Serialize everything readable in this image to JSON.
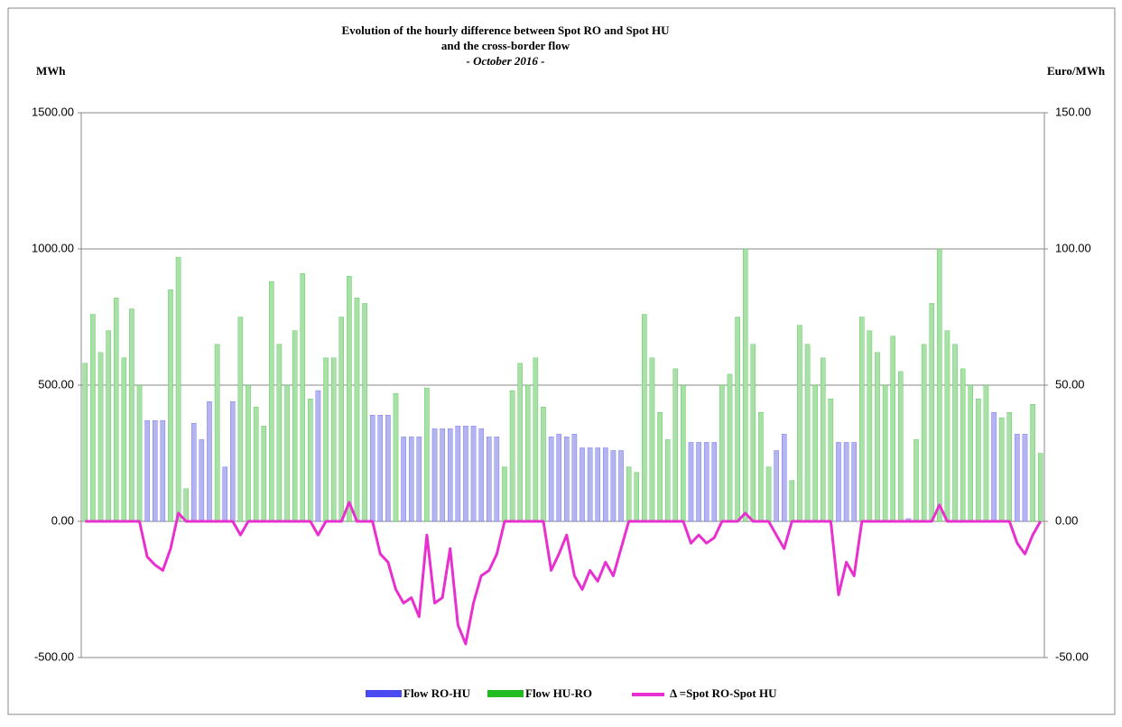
{
  "chart_data": {
    "type": "bar",
    "title_lines": [
      "Evolution of the hourly difference between Spot RO and Spot HU",
      "and the cross-border flow",
      "- October 2016 -"
    ],
    "y_label": "MWh",
    "y2_label": "Euro/MWh",
    "ylim": [
      -500,
      1500
    ],
    "yticks": [
      {
        "value": -500,
        "label": "-500.00"
      },
      {
        "value": 0,
        "label": "0.00"
      },
      {
        "value": 500,
        "label": "500.00"
      },
      {
        "value": 1000,
        "label": "1000.00"
      },
      {
        "value": 1500,
        "label": "1500.00"
      }
    ],
    "y2lim": [
      -50,
      150
    ],
    "y2ticks": [
      {
        "value": -50,
        "label": "-50.00"
      },
      {
        "value": 0,
        "label": "0.00"
      },
      {
        "value": 50,
        "label": "50.00"
      },
      {
        "value": 100,
        "label": "100.00"
      },
      {
        "value": 150,
        "label": "150.00"
      }
    ],
    "grid": true,
    "series": [
      {
        "name": "Flow RO-HU",
        "color": "#b4b4f0",
        "legend_color": "#4a4af0",
        "values": [
          null,
          null,
          null,
          null,
          null,
          null,
          null,
          null,
          370,
          370,
          370,
          null,
          null,
          null,
          360,
          300,
          440,
          null,
          200,
          440,
          null,
          null,
          null,
          null,
          null,
          null,
          null,
          null,
          null,
          null,
          480,
          null,
          null,
          null,
          null,
          null,
          null,
          390,
          390,
          390,
          null,
          310,
          310,
          310,
          null,
          340,
          340,
          340,
          350,
          350,
          350,
          340,
          310,
          310,
          null,
          null,
          null,
          null,
          null,
          null,
          310,
          320,
          310,
          320,
          270,
          270,
          270,
          270,
          260,
          260,
          null,
          null,
          null,
          null,
          null,
          null,
          null,
          null,
          290,
          290,
          290,
          290,
          null,
          null,
          null,
          null,
          null,
          null,
          null,
          260,
          320,
          null,
          null,
          null,
          null,
          null,
          null,
          290,
          290,
          290,
          null,
          null,
          null,
          null,
          null,
          null,
          10,
          null,
          null,
          null,
          null,
          null,
          null,
          null,
          null,
          null,
          null,
          400,
          null,
          null,
          320,
          320,
          null,
          null
        ]
      },
      {
        "name": "Flow HU-RO",
        "color": "#a8e0a8",
        "legend_color": "#22bb22",
        "values": [
          580,
          760,
          620,
          700,
          820,
          600,
          780,
          500,
          null,
          null,
          null,
          850,
          970,
          120,
          null,
          null,
          null,
          650,
          null,
          null,
          750,
          500,
          420,
          350,
          880,
          650,
          500,
          700,
          910,
          450,
          null,
          600,
          600,
          750,
          900,
          820,
          800,
          null,
          null,
          null,
          470,
          null,
          null,
          null,
          490,
          null,
          null,
          null,
          null,
          null,
          null,
          null,
          null,
          null,
          200,
          480,
          580,
          500,
          600,
          420,
          null,
          null,
          null,
          null,
          null,
          null,
          null,
          null,
          null,
          null,
          200,
          180,
          760,
          600,
          400,
          300,
          560,
          500,
          null,
          null,
          null,
          null,
          500,
          540,
          750,
          1000,
          650,
          400,
          200,
          null,
          null,
          150,
          720,
          650,
          500,
          600,
          450,
          null,
          null,
          null,
          750,
          700,
          620,
          500,
          680,
          550,
          null,
          300,
          650,
          800,
          1000,
          700,
          650,
          560,
          500,
          450,
          500,
          null,
          380,
          400,
          null,
          null,
          430,
          250
        ]
      },
      {
        "name": "Δ =Spot RO-Spot HU",
        "type": "line",
        "axis": "y2",
        "color": "#e830d0",
        "values": [
          0,
          0,
          0,
          0,
          0,
          0,
          0,
          0,
          -13,
          -16,
          -18,
          -10,
          3,
          0,
          0,
          0,
          0,
          0,
          0,
          0,
          -5,
          0,
          0,
          0,
          0,
          0,
          0,
          0,
          0,
          0,
          -5,
          0,
          0,
          0,
          7,
          0,
          0,
          0,
          -12,
          -15,
          -25,
          -30,
          -28,
          -35,
          -5,
          -30,
          -28,
          -10,
          -38,
          -45,
          -30,
          -20,
          -18,
          -12,
          0,
          0,
          0,
          0,
          0,
          0,
          -18,
          -12,
          -5,
          -20,
          -25,
          -18,
          -22,
          -15,
          -20,
          -10,
          0,
          0,
          0,
          0,
          0,
          0,
          0,
          0,
          -8,
          -5,
          -8,
          -6,
          0,
          0,
          0,
          3,
          0,
          0,
          0,
          -5,
          -10,
          0,
          0,
          0,
          0,
          0,
          0,
          -27,
          -15,
          -20,
          0,
          0,
          0,
          0,
          0,
          0,
          0,
          0,
          0,
          0,
          6,
          0,
          0,
          0,
          0,
          0,
          0,
          0,
          0,
          0,
          -8,
          -12,
          -5,
          0
        ]
      }
    ]
  }
}
